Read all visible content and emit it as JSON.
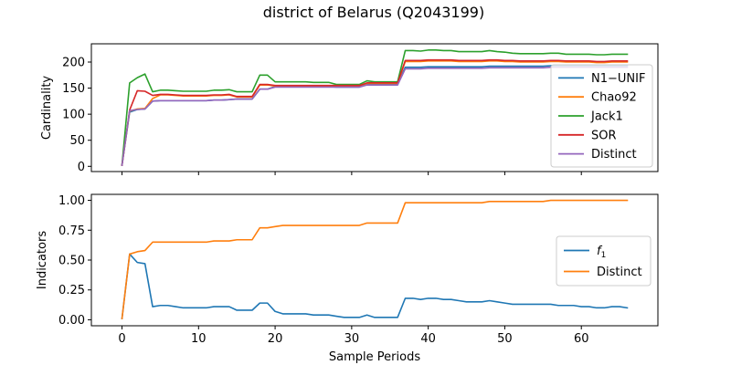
{
  "title": "district of Belarus (Q2043199)",
  "chart_data": [
    {
      "type": "line",
      "ylabel": "Cardinality",
      "xlim": [
        -4,
        70
      ],
      "ylim": [
        -10,
        235
      ],
      "yticks": [
        0,
        50,
        100,
        150,
        200
      ],
      "xticks": [
        0,
        10,
        20,
        30,
        40,
        50,
        60
      ],
      "show_xtick_labels": false,
      "grid": false,
      "legend_position": "lower-right",
      "x": [
        0,
        1,
        2,
        3,
        4,
        5,
        6,
        7,
        8,
        9,
        10,
        11,
        12,
        13,
        14,
        15,
        16,
        17,
        18,
        19,
        20,
        21,
        22,
        23,
        24,
        25,
        26,
        27,
        28,
        29,
        30,
        31,
        32,
        33,
        34,
        35,
        36,
        37,
        38,
        39,
        40,
        41,
        42,
        43,
        44,
        45,
        46,
        47,
        48,
        49,
        50,
        51,
        52,
        53,
        54,
        55,
        56,
        57,
        58,
        59,
        60,
        61,
        62,
        63,
        64,
        65,
        66
      ],
      "series": [
        {
          "name": "N1−UNIF",
          "color": "#1f77b4",
          "values": [
            2,
            104,
            109,
            110,
            125,
            126,
            126,
            126,
            126,
            126,
            126,
            126,
            127,
            127,
            128,
            129,
            129,
            129,
            148,
            148,
            153,
            153,
            153,
            153,
            153,
            153,
            153,
            153,
            152,
            152,
            152,
            152,
            157,
            157,
            157,
            157,
            157,
            190,
            190,
            190,
            191,
            191,
            191,
            191,
            191,
            191,
            191,
            191,
            192,
            192,
            192,
            192,
            192,
            192,
            192,
            192,
            193,
            193,
            193,
            193,
            193,
            193,
            193,
            193,
            193,
            193,
            193
          ]
        },
        {
          "name": "Chao92",
          "color": "#ff7f0e",
          "values": [
            2,
            106,
            110,
            111,
            130,
            137,
            137,
            136,
            135,
            135,
            135,
            135,
            136,
            136,
            137,
            133,
            133,
            133,
            156,
            156,
            154,
            154,
            154,
            154,
            154,
            154,
            154,
            154,
            154,
            154,
            154,
            154,
            159,
            159,
            159,
            159,
            159,
            201,
            201,
            201,
            202,
            202,
            202,
            202,
            201,
            201,
            201,
            201,
            202,
            202,
            201,
            201,
            200,
            200,
            200,
            200,
            201,
            201,
            200,
            200,
            200,
            200,
            199,
            199,
            200,
            200,
            200
          ]
        },
        {
          "name": "Jack1",
          "color": "#2ca02c",
          "values": [
            3,
            160,
            170,
            177,
            143,
            146,
            146,
            145,
            144,
            144,
            144,
            144,
            146,
            146,
            147,
            143,
            143,
            143,
            175,
            175,
            162,
            162,
            162,
            162,
            162,
            161,
            161,
            161,
            157,
            157,
            157,
            157,
            164,
            162,
            162,
            162,
            162,
            222,
            222,
            221,
            223,
            223,
            222,
            222,
            220,
            220,
            220,
            220,
            222,
            220,
            219,
            217,
            216,
            216,
            216,
            216,
            217,
            217,
            215,
            215,
            215,
            215,
            214,
            214,
            215,
            215,
            215
          ]
        },
        {
          "name": "SOR",
          "color": "#d62728",
          "values": [
            2,
            108,
            145,
            144,
            136,
            138,
            138,
            137,
            136,
            136,
            136,
            136,
            137,
            137,
            138,
            134,
            134,
            134,
            157,
            157,
            155,
            155,
            155,
            155,
            155,
            155,
            155,
            155,
            155,
            155,
            155,
            155,
            160,
            160,
            160,
            160,
            160,
            203,
            203,
            203,
            204,
            204,
            204,
            204,
            203,
            203,
            203,
            203,
            204,
            204,
            203,
            203,
            202,
            202,
            202,
            202,
            203,
            203,
            202,
            202,
            202,
            202,
            201,
            201,
            202,
            202,
            202
          ]
        },
        {
          "name": "Distinct",
          "color": "#9467bd",
          "values": [
            2,
            107,
            109,
            110,
            125,
            126,
            126,
            126,
            126,
            126,
            126,
            126,
            127,
            127,
            128,
            129,
            129,
            129,
            148,
            148,
            152,
            152,
            152,
            152,
            152,
            152,
            152,
            152,
            152,
            152,
            152,
            152,
            156,
            156,
            156,
            156,
            156,
            187,
            187,
            187,
            188,
            188,
            188,
            188,
            188,
            188,
            188,
            188,
            189,
            189,
            189,
            189,
            189,
            189,
            189,
            189,
            190,
            190,
            190,
            190,
            190,
            190,
            190,
            190,
            190,
            190,
            190
          ]
        }
      ]
    },
    {
      "type": "line",
      "ylabel": "Indicators",
      "xlabel": "Sample Periods",
      "xlim": [
        -4,
        70
      ],
      "ylim": [
        -0.05,
        1.05
      ],
      "yticks": [
        0.0,
        0.25,
        0.5,
        0.75,
        1.0
      ],
      "ytick_labels": [
        "0.00",
        "0.25",
        "0.50",
        "0.75",
        "1.00"
      ],
      "xticks": [
        0,
        10,
        20,
        30,
        40,
        50,
        60
      ],
      "xtick_labels": [
        "0",
        "10",
        "20",
        "30",
        "40",
        "50",
        "60"
      ],
      "grid": false,
      "legend_position": "center-right",
      "x": [
        0,
        1,
        2,
        3,
        4,
        5,
        6,
        7,
        8,
        9,
        10,
        11,
        12,
        13,
        14,
        15,
        16,
        17,
        18,
        19,
        20,
        21,
        22,
        23,
        24,
        25,
        26,
        27,
        28,
        29,
        30,
        31,
        32,
        33,
        34,
        35,
        36,
        37,
        38,
        39,
        40,
        41,
        42,
        43,
        44,
        45,
        46,
        47,
        48,
        49,
        50,
        51,
        52,
        53,
        54,
        55,
        56,
        57,
        58,
        59,
        60,
        61,
        62,
        63,
        64,
        65,
        66
      ],
      "series": [
        {
          "name": "f",
          "name_subscript": "1",
          "color": "#1f77b4",
          "values": [
            0.01,
            0.55,
            0.48,
            0.47,
            0.11,
            0.12,
            0.12,
            0.11,
            0.1,
            0.1,
            0.1,
            0.1,
            0.11,
            0.11,
            0.11,
            0.08,
            0.08,
            0.08,
            0.14,
            0.14,
            0.07,
            0.05,
            0.05,
            0.05,
            0.05,
            0.04,
            0.04,
            0.04,
            0.03,
            0.02,
            0.02,
            0.02,
            0.04,
            0.02,
            0.02,
            0.02,
            0.02,
            0.18,
            0.18,
            0.17,
            0.18,
            0.18,
            0.17,
            0.17,
            0.16,
            0.15,
            0.15,
            0.15,
            0.16,
            0.15,
            0.14,
            0.13,
            0.13,
            0.13,
            0.13,
            0.13,
            0.13,
            0.12,
            0.12,
            0.12,
            0.11,
            0.11,
            0.1,
            0.1,
            0.11,
            0.11,
            0.1
          ]
        },
        {
          "name": "Distinct",
          "color": "#ff7f0e",
          "values": [
            0.01,
            0.55,
            0.57,
            0.58,
            0.65,
            0.65,
            0.65,
            0.65,
            0.65,
            0.65,
            0.65,
            0.65,
            0.66,
            0.66,
            0.66,
            0.67,
            0.67,
            0.67,
            0.77,
            0.77,
            0.78,
            0.79,
            0.79,
            0.79,
            0.79,
            0.79,
            0.79,
            0.79,
            0.79,
            0.79,
            0.79,
            0.79,
            0.81,
            0.81,
            0.81,
            0.81,
            0.81,
            0.98,
            0.98,
            0.98,
            0.98,
            0.98,
            0.98,
            0.98,
            0.98,
            0.98,
            0.98,
            0.98,
            0.99,
            0.99,
            0.99,
            0.99,
            0.99,
            0.99,
            0.99,
            0.99,
            1.0,
            1.0,
            1.0,
            1.0,
            1.0,
            1.0,
            1.0,
            1.0,
            1.0,
            1.0,
            1.0
          ]
        }
      ]
    }
  ]
}
